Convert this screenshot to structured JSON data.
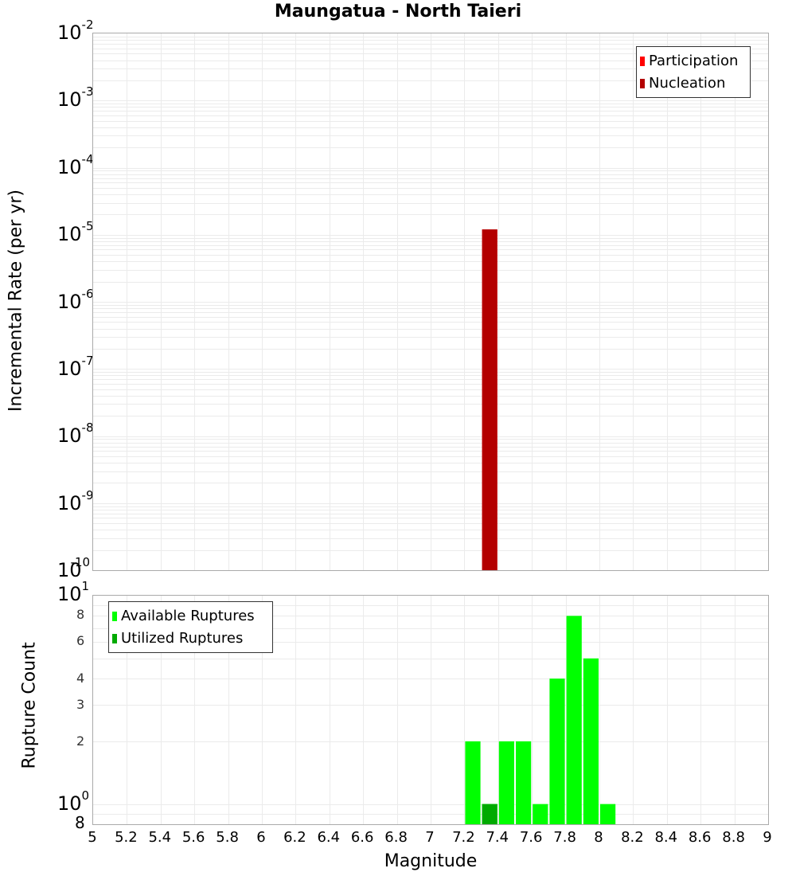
{
  "title": "Maungatua - North Taieri",
  "colors": {
    "participation": "#ff0000",
    "nucleation": "#b30000",
    "available": "#00ff00",
    "utilized": "#00aa00",
    "grid": "#ebebeb",
    "frame": "#aaaaaa"
  },
  "top_plot": {
    "ylabel": "Incremental Rate (per yr)",
    "yticks": [
      {
        "base": "10",
        "exp": "-2"
      },
      {
        "base": "10",
        "exp": "-3"
      },
      {
        "base": "10",
        "exp": "-4"
      },
      {
        "base": "10",
        "exp": "-5"
      },
      {
        "base": "10",
        "exp": "-6"
      },
      {
        "base": "10",
        "exp": "-7"
      },
      {
        "base": "10",
        "exp": "-8"
      },
      {
        "base": "10",
        "exp": "-9"
      },
      {
        "base": "10",
        "exp": "-10"
      }
    ],
    "legend": [
      {
        "label": "Participation"
      },
      {
        "label": "Nucleation"
      }
    ]
  },
  "bottom_plot": {
    "ylabel": "Rupture Count",
    "ytick_major_top": {
      "base": "10",
      "exp": "1"
    },
    "ytick_major_bottom": {
      "base": "10",
      "exp": "0"
    },
    "ytick_minor": [
      "8",
      "6",
      "4",
      "3",
      "2",
      "8"
    ],
    "legend": [
      {
        "label": "Available Ruptures"
      },
      {
        "label": "Utilized Ruptures"
      }
    ],
    "xlabel": "Magnitude",
    "xticks": [
      "5",
      "5.2",
      "5.4",
      "5.6",
      "5.8",
      "6",
      "6.2",
      "6.4",
      "6.6",
      "6.8",
      "7",
      "7.2",
      "7.4",
      "7.6",
      "7.8",
      "8",
      "8.2",
      "8.4",
      "8.6",
      "8.8",
      "9"
    ]
  },
  "chart_data": [
    {
      "type": "bar",
      "title": "Maungatua - North Taieri",
      "xlabel": "Magnitude",
      "ylabel": "Incremental Rate (per yr)",
      "yscale": "log",
      "xlim": [
        5,
        9
      ],
      "ylim": [
        1e-10,
        0.01
      ],
      "legend_position": "top-right",
      "grid": true,
      "series": [
        {
          "name": "Participation",
          "color": "#ff0000",
          "x": [
            7.35
          ],
          "values": [
            1.2e-05
          ]
        },
        {
          "name": "Nucleation",
          "color": "#b30000",
          "x": [
            7.35
          ],
          "values": [
            1.2e-05
          ]
        }
      ]
    },
    {
      "type": "bar",
      "xlabel": "Magnitude",
      "ylabel": "Rupture Count",
      "yscale": "log",
      "xlim": [
        5,
        9
      ],
      "ylim": [
        0.8,
        10
      ],
      "legend_position": "top-left",
      "grid": true,
      "categories": [
        "7.25",
        "7.35",
        "7.45",
        "7.55",
        "7.65",
        "7.75",
        "7.85",
        "7.95",
        "8.05"
      ],
      "series": [
        {
          "name": "Available Ruptures",
          "color": "#00ff00",
          "values": [
            2,
            1,
            2,
            2,
            1,
            4,
            8,
            5,
            1
          ]
        },
        {
          "name": "Utilized Ruptures",
          "color": "#00aa00",
          "values": [
            0,
            1,
            0,
            0,
            0,
            0,
            0,
            0,
            0
          ]
        }
      ]
    }
  ]
}
